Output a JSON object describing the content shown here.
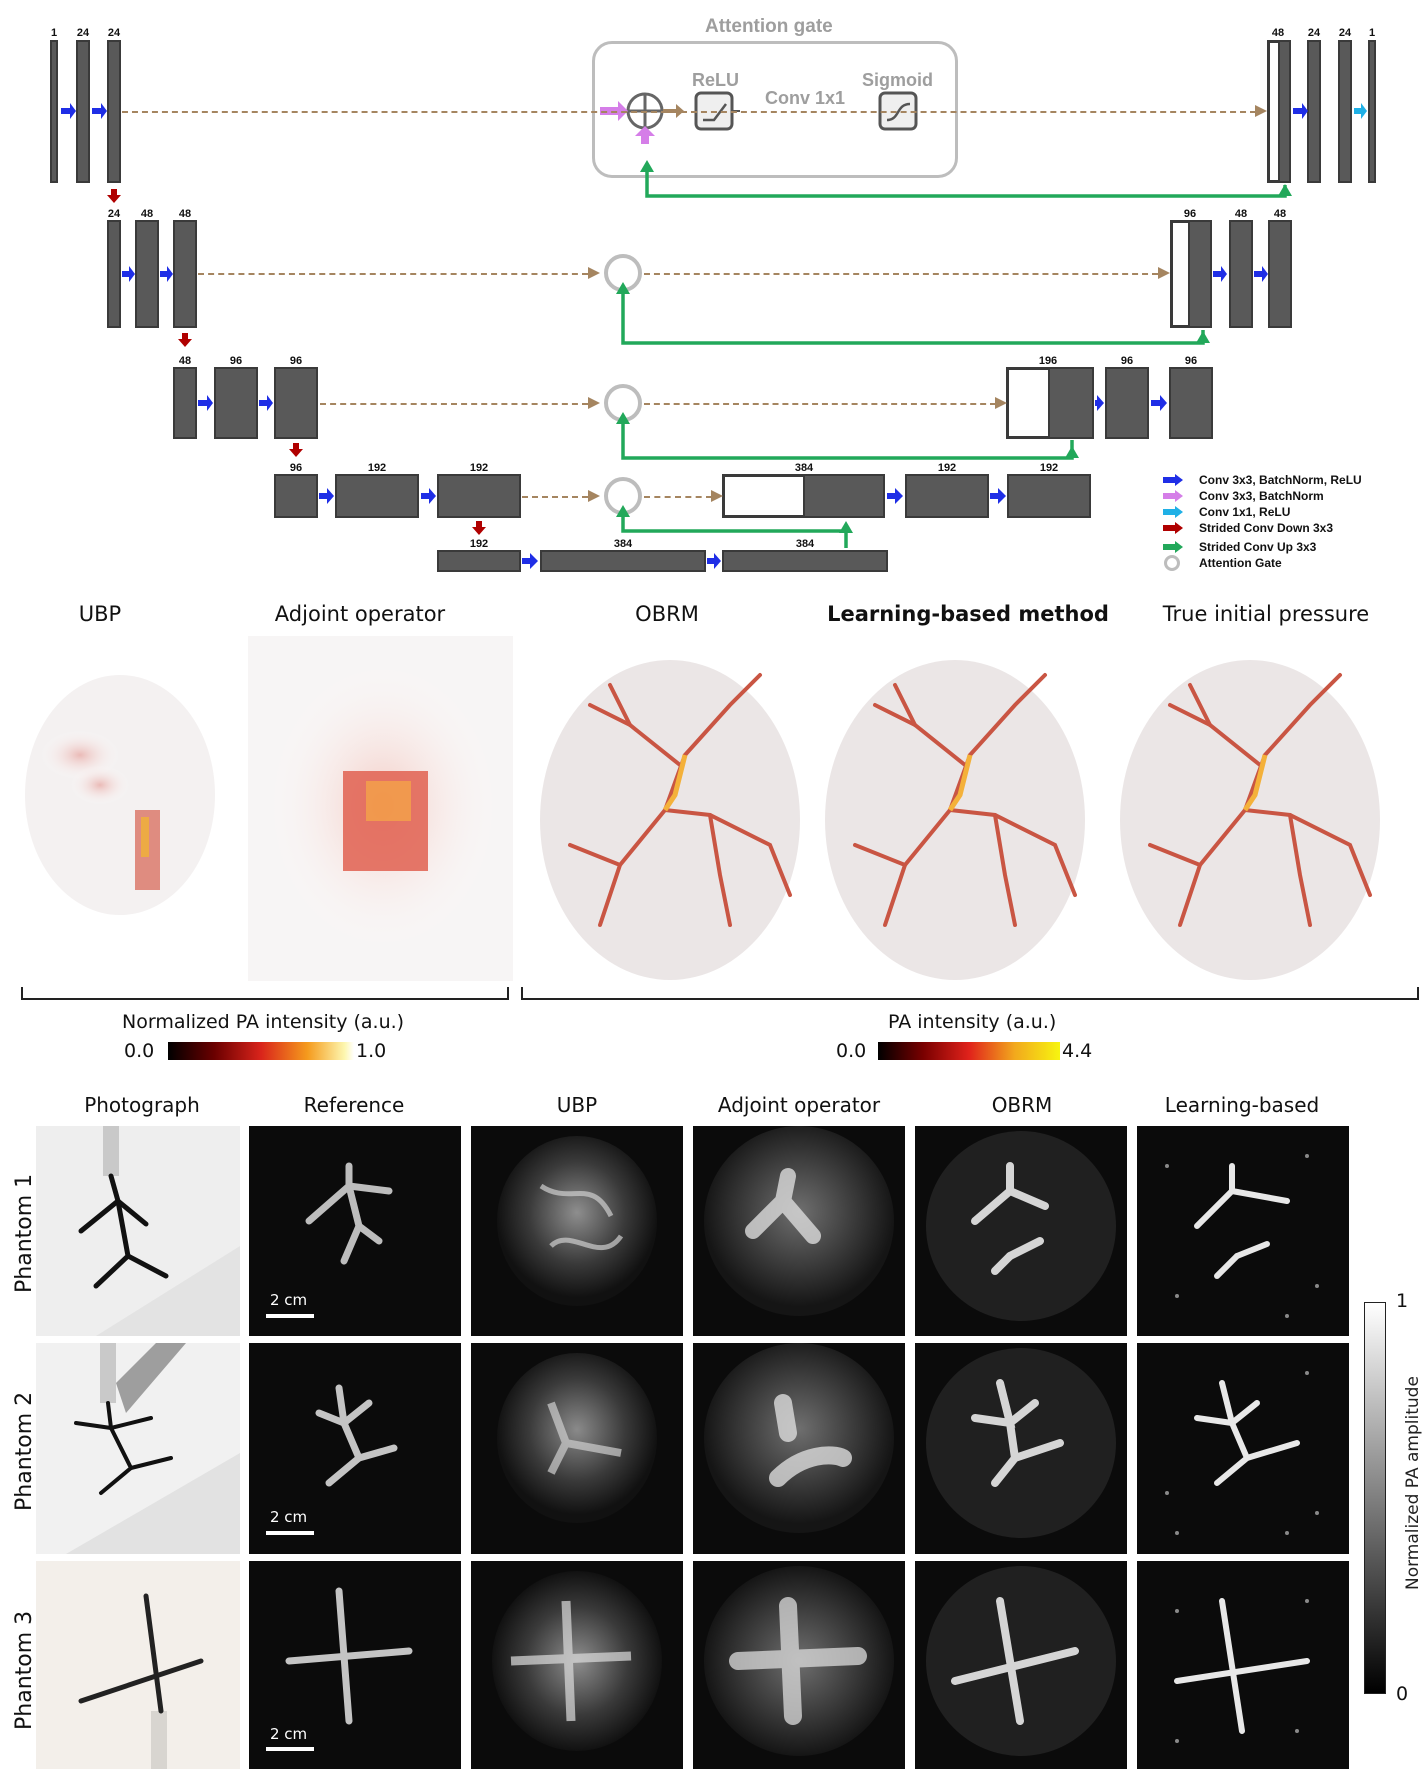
{
  "network": {
    "attention_gate_title": "Attention gate",
    "relu_label": "ReLU",
    "conv_label": "Conv 1x1",
    "sigmoid_label": "Sigmoid",
    "level1_left": [
      "1",
      "24",
      "24"
    ],
    "level1_right": [
      "48",
      "24",
      "24",
      "1"
    ],
    "level2_left": [
      "24",
      "48",
      "48"
    ],
    "level2_right": [
      "96",
      "48",
      "48"
    ],
    "level3_left": [
      "48",
      "96",
      "96"
    ],
    "level3_right": [
      "196",
      "96",
      "96"
    ],
    "level4_left": [
      "96",
      "192",
      "192"
    ],
    "level4_right": [
      "384",
      "192",
      "192"
    ],
    "bottleneck": [
      "192",
      "384",
      "384"
    ]
  },
  "legend": {
    "items": [
      {
        "label": "Conv 3x3, BatchNorm, ReLU",
        "color": "#1f2ee6"
      },
      {
        "label": "Conv 3x3, BatchNorm",
        "color": "#d57ee8"
      },
      {
        "label": "Conv 1x1, ReLU",
        "color": "#1fb0e6"
      },
      {
        "label": "Strided Conv Down 3x3",
        "color": "#b00000"
      },
      {
        "label": "Strided Conv Up 3x3",
        "color": "#22a85a"
      },
      {
        "label": "Attention Gate",
        "color": "#bdbdbd"
      }
    ]
  },
  "sim_panels": {
    "titles": [
      "UBP",
      "Adjoint operator",
      "OBRM",
      "Learning-based method",
      "True initial pressure"
    ],
    "left_colorbar": {
      "label": "Normalized PA intensity (a.u.)",
      "min": "0.0",
      "max": "1.0"
    },
    "right_colorbar": {
      "label": "PA intensity (a.u.)",
      "min": "0.0",
      "max": "4.4"
    }
  },
  "phantom_grid": {
    "columns": [
      "Photograph",
      "Reference",
      "UBP",
      "Adjoint operator",
      "OBRM",
      "Learning-based"
    ],
    "rows": [
      "Phantom 1",
      "Phantom 2",
      "Phantom 3"
    ],
    "scale_label": "2 cm",
    "colorbar": {
      "label": "Normalized PA amplitude",
      "max": "1",
      "min": "0"
    }
  }
}
